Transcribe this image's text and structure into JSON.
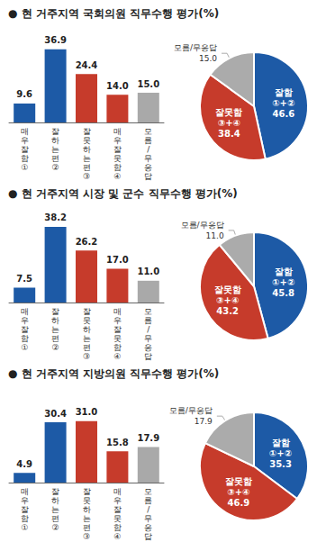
{
  "chart_data": [
    {
      "type": "bar",
      "title": "● 현 거주지역 국회의원 직무수행 평가(%)",
      "categories": [
        "매우 잘함 ①",
        "잘하는 편 ②",
        "잘못하는 편 ③",
        "매우 잘못함 ④",
        "모름/ 무응답"
      ],
      "values": [
        9.6,
        36.9,
        24.4,
        14.0,
        15.0
      ],
      "value_labels": [
        "9.6",
        "36.9",
        "24.4",
        "14.0",
        "15.0"
      ],
      "colors": [
        "#1d5aa6",
        "#1d5aa6",
        "#c63b2b",
        "#c63b2b",
        "#a9a9a9"
      ],
      "ylim": [
        0,
        40
      ],
      "data_labels": true,
      "tick_labels": "x",
      "grid": false
    },
    {
      "type": "pie",
      "categories": [
        "잘함 ①+②",
        "잘못함 ③+④",
        "모름/무응답"
      ],
      "values": [
        46.6,
        38.4,
        15.0
      ],
      "value_labels": [
        "46.6",
        "38.4",
        "15.0"
      ],
      "colors": [
        "#1d5aa6",
        "#c63b2b",
        "#ababab"
      ],
      "data_labels": true
    },
    {
      "type": "bar",
      "title": "● 현 거주지역 시장 및 군수 직무수행 평가(%)",
      "categories": [
        "매우 잘함 ①",
        "잘하는 편 ②",
        "잘못하는 편 ③",
        "매우 잘못함 ④",
        "모름/ 무응답"
      ],
      "values": [
        7.5,
        38.2,
        26.2,
        17.0,
        11.0
      ],
      "value_labels": [
        "7.5",
        "38.2",
        "26.2",
        "17.0",
        "11.0"
      ],
      "colors": [
        "#1d5aa6",
        "#1d5aa6",
        "#c63b2b",
        "#c63b2b",
        "#a9a9a9"
      ],
      "ylim": [
        0,
        40
      ],
      "data_labels": true,
      "tick_labels": "x",
      "grid": false
    },
    {
      "type": "pie",
      "categories": [
        "잘함 ①+②",
        "잘못함 ③+④",
        "모름/무응답"
      ],
      "values": [
        45.8,
        43.2,
        11.0
      ],
      "value_labels": [
        "45.8",
        "43.2",
        "11.0"
      ],
      "colors": [
        "#1d5aa6",
        "#c63b2b",
        "#ababab"
      ],
      "data_labels": true
    },
    {
      "type": "bar",
      "title": "● 현 거주지역 지방의원 직무수행 평가(%)",
      "categories": [
        "매우 잘함 ①",
        "잘하는 편 ②",
        "잘못하는 편 ③",
        "매우 잘못함 ④",
        "모름/ 무응답"
      ],
      "values": [
        4.9,
        30.4,
        31.0,
        15.8,
        17.9
      ],
      "value_labels": [
        "4.9",
        "30.4",
        "31.0",
        "15.8",
        "17.9"
      ],
      "colors": [
        "#1d5aa6",
        "#1d5aa6",
        "#c63b2b",
        "#c63b2b",
        "#a9a9a9"
      ],
      "ylim": [
        0,
        40
      ],
      "data_labels": true,
      "tick_labels": "x",
      "grid": false
    },
    {
      "type": "pie",
      "categories": [
        "잘함 ①+②",
        "잘못함 ③+④",
        "모름/무응답"
      ],
      "values": [
        35.3,
        46.9,
        17.9
      ],
      "value_labels": [
        "35.3",
        "46.9",
        "17.9"
      ],
      "colors": [
        "#1d5aa6",
        "#c63b2b",
        "#ababab"
      ],
      "data_labels": true
    }
  ]
}
